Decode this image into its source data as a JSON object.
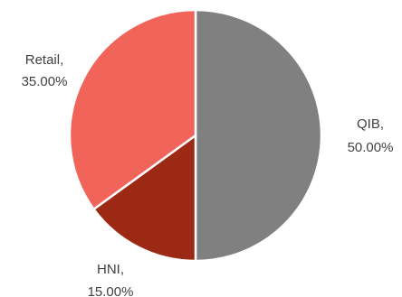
{
  "chart_data": {
    "type": "pie",
    "title": "",
    "legend": "none",
    "start_angle_deg": 0,
    "direction": "clockwise",
    "slices": [
      {
        "name": "QIB",
        "value": 50.0,
        "label_name": "QIB,",
        "label_value": "50.00%",
        "color": "#808080"
      },
      {
        "name": "HNI",
        "value": 15.0,
        "label_name": "HNI,",
        "label_value": "15.00%",
        "color": "#9c2914"
      },
      {
        "name": "Retail",
        "value": 35.0,
        "label_name": "Retail,",
        "label_value": "35.00%",
        "color": "#f0645a"
      }
    ]
  }
}
